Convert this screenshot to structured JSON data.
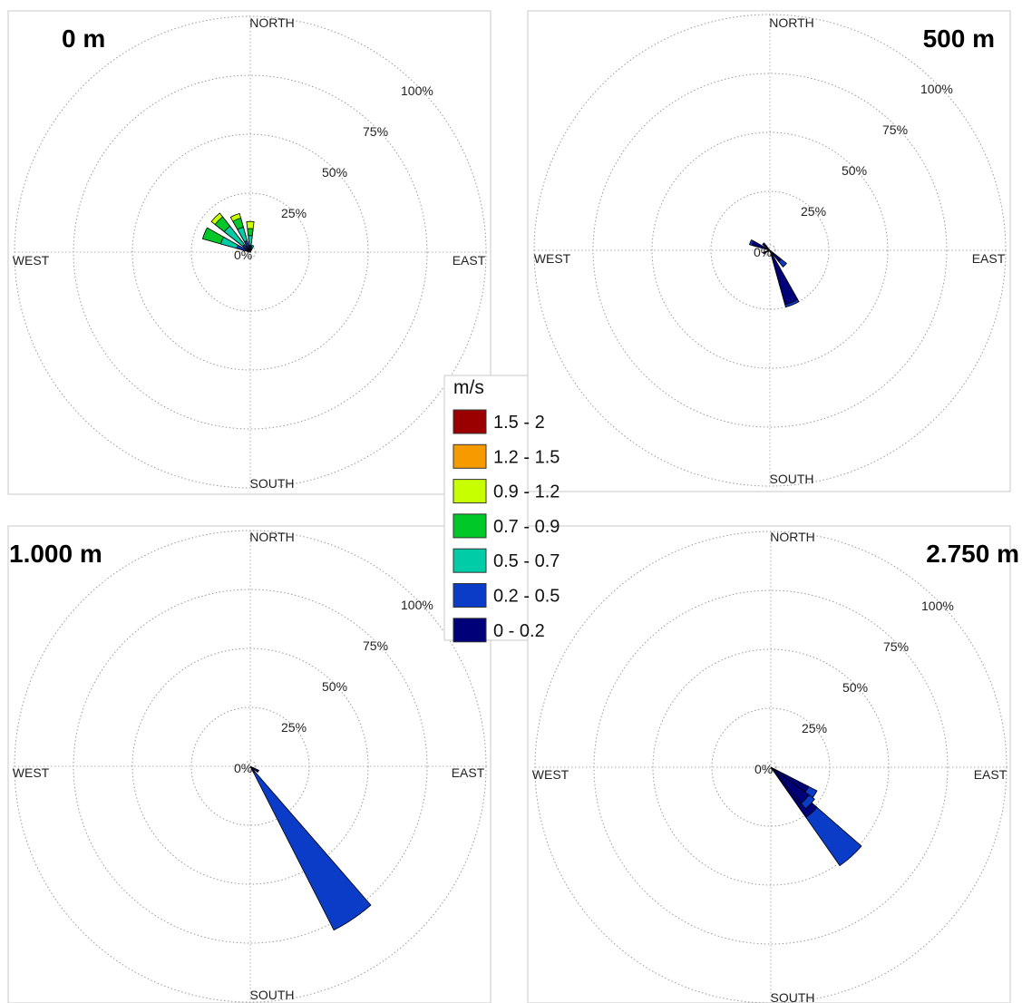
{
  "legend": {
    "title": "m/s",
    "bins": [
      {
        "label": "1.5 - 2",
        "color": "#9b0000"
      },
      {
        "label": "1.2 - 1.5",
        "color": "#f59b00"
      },
      {
        "label": "0.9 - 1.2",
        "color": "#c8ff00"
      },
      {
        "label": "0.7 - 0.9",
        "color": "#00c828"
      },
      {
        "label": "0.5 - 0.7",
        "color": "#00cca8"
      },
      {
        "label": "0.2 - 0.5",
        "color": "#0a3cc8"
      },
      {
        "label": "0 - 0.2",
        "color": "#000078"
      }
    ]
  },
  "directions": {
    "north": "NORTH",
    "south": "SOUTH",
    "east": "EAST",
    "west": "WEST"
  },
  "ring_labels": [
    "0%",
    "25%",
    "50%",
    "75%",
    "100%"
  ],
  "chart_data": [
    {
      "type": "windrose",
      "title": "0 m",
      "rlim": [
        0,
        100
      ],
      "rings": [
        0,
        25,
        50,
        75,
        100
      ],
      "sectors": [
        {
          "dir": 292.5,
          "stack": [
            2,
            4,
            7,
            8,
            0,
            0,
            0
          ]
        },
        {
          "dir": 315.0,
          "stack": [
            1,
            3,
            10,
            5,
            2,
            0,
            0
          ]
        },
        {
          "dir": 337.5,
          "stack": [
            1,
            4,
            6,
            4,
            2,
            0,
            0
          ]
        },
        {
          "dir": 0.0,
          "stack": [
            1,
            2,
            4,
            3,
            3,
            0,
            0
          ]
        },
        {
          "dir": 22.5,
          "stack": [
            0,
            1,
            2,
            0,
            0,
            0,
            0
          ]
        }
      ]
    },
    {
      "type": "windrose",
      "title": "500 m",
      "rlim": [
        0,
        100
      ],
      "rings": [
        0,
        25,
        50,
        75,
        100
      ],
      "sectors": [
        {
          "dir": 135.0,
          "stack": [
            6,
            3,
            0,
            0,
            0,
            0,
            0
          ]
        },
        {
          "dir": 157.5,
          "stack": [
            24,
            1,
            0,
            0,
            0,
            0,
            0
          ]
        },
        {
          "dir": 292.5,
          "stack": [
            8,
            1,
            0,
            0,
            0,
            0,
            0
          ]
        },
        {
          "dir": 315.0,
          "stack": [
            4,
            0,
            0,
            0,
            0,
            0,
            0
          ]
        },
        {
          "dir": 247.5,
          "stack": [
            3,
            0,
            0,
            0,
            0,
            0,
            0
          ]
        }
      ]
    },
    {
      "type": "windrose",
      "title": "1.000 m",
      "rlim": [
        0,
        100
      ],
      "rings": [
        0,
        25,
        50,
        75,
        100
      ],
      "sectors": [
        {
          "dir": 146.0,
          "stack": [
            3,
            75,
            0,
            0,
            0,
            0,
            0
          ]
        },
        {
          "dir": 122.0,
          "stack": [
            4,
            0,
            0,
            0,
            0,
            0,
            0
          ]
        }
      ]
    },
    {
      "type": "windrose",
      "title": "2.750 m",
      "rlim": [
        0,
        100
      ],
      "rings": [
        0,
        25,
        50,
        75,
        100
      ],
      "sectors": [
        {
          "dir": 138.0,
          "stack": [
            26,
            25,
            0,
            0,
            0,
            0,
            0
          ]
        },
        {
          "dir": 124.0,
          "stack": [
            18,
            4,
            0,
            0,
            0,
            0,
            0
          ]
        },
        {
          "dir": 133.0,
          "stack": [
            20,
            3,
            0,
            0,
            0,
            0,
            0
          ]
        }
      ]
    }
  ]
}
